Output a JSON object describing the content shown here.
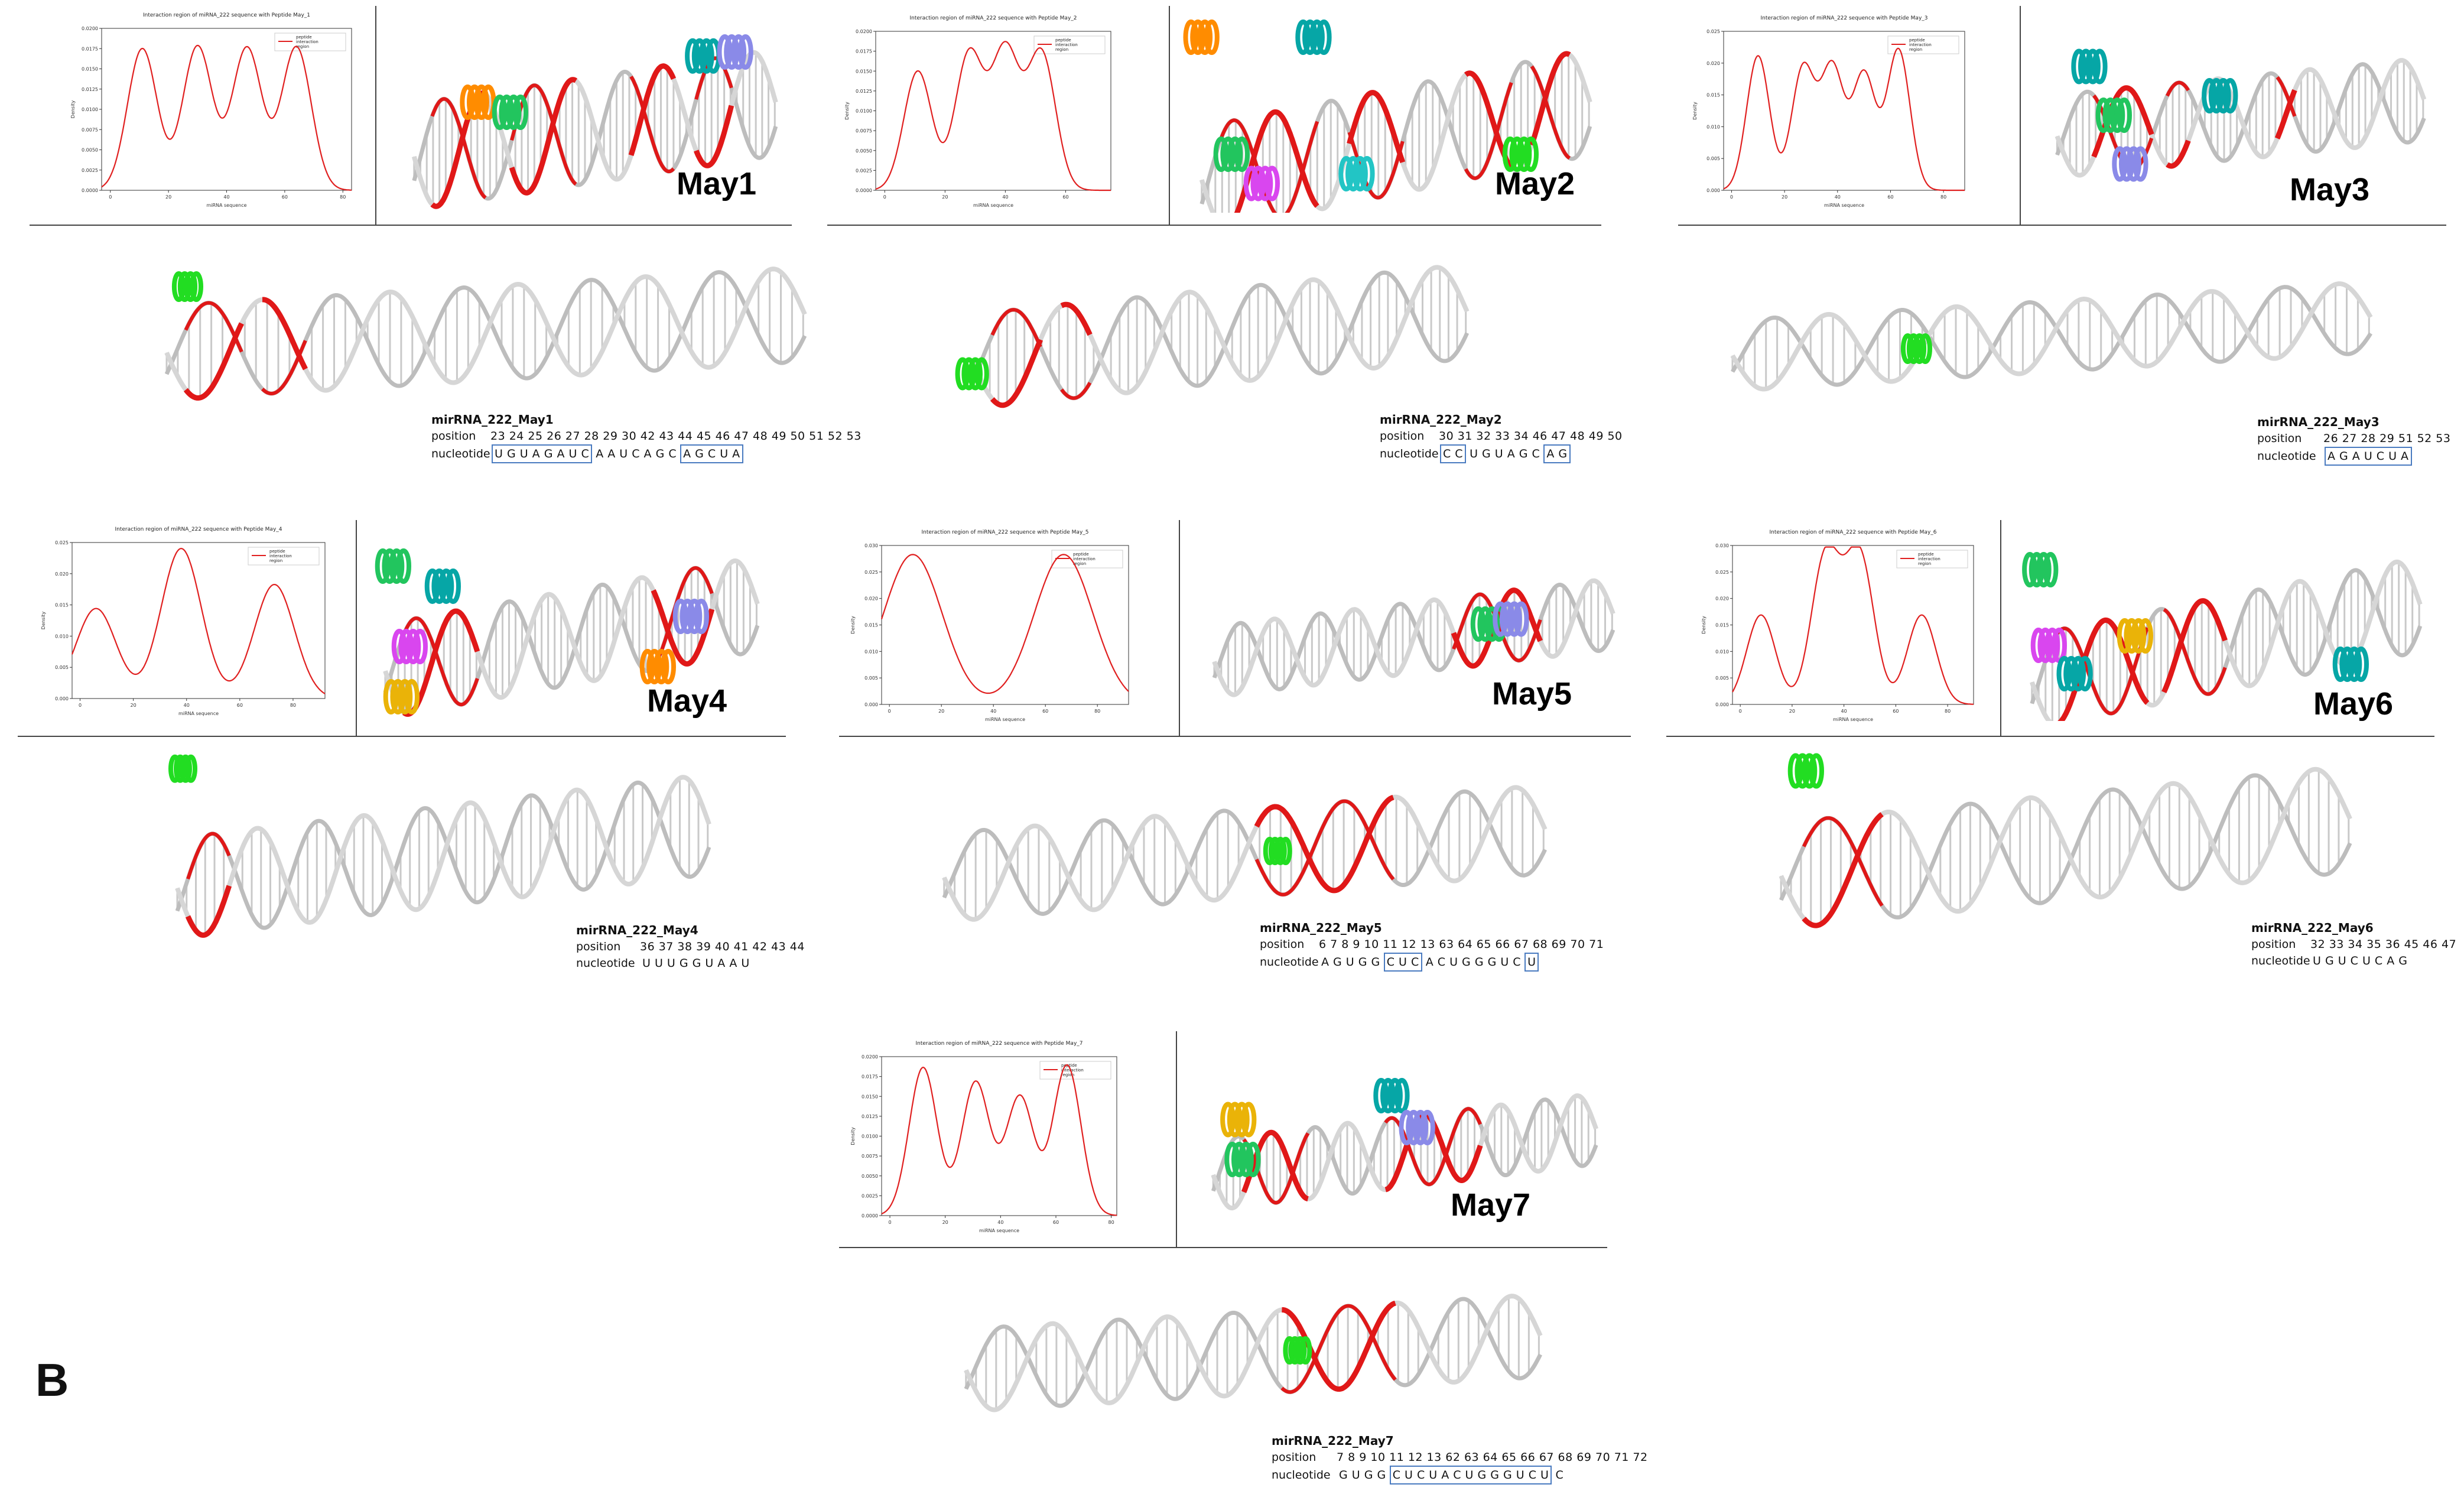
{
  "figure_letter": "B",
  "panels": [
    {
      "id": "may1",
      "label": "May1",
      "plot_title": "Interaction region of miRNA_222 sequence with Peptide May_1",
      "xlabel": "miRNA sequence",
      "ylabel": "Density",
      "legend": [
        "peptide",
        "interaction",
        "region"
      ],
      "yticks": [
        "0.0000",
        "0.0025",
        "0.0050",
        "0.0075",
        "0.0100",
        "0.0125",
        "0.0150",
        "0.0175",
        "0.0200"
      ],
      "xticks": [
        "0",
        "20",
        "40",
        "60",
        "80"
      ],
      "seq_title": "mirRNA_222_May1",
      "position_label": "position",
      "nucleotide_label": "nucleotide",
      "positions": "23 24 25 26 27 28 29 30 42 43 44 45 46 47 48 49 50 51 52 53",
      "nucleotides": [
        {
          "text": "U G U  A G A U C",
          "boxed": true
        },
        {
          "text": "A A U C A G C",
          "boxed": false
        },
        {
          "text": "A G C U A",
          "boxed": true
        }
      ]
    },
    {
      "id": "may2",
      "label": "May2",
      "plot_title": "Interaction region of miRNA_222 sequence with Peptide May_2",
      "xlabel": "miRNA sequence",
      "ylabel": "Density",
      "legend": [
        "peptide",
        "interaction",
        "region"
      ],
      "yticks": [
        "0.0000",
        "0.0025",
        "0.0050",
        "0.0075",
        "0.0100",
        "0.0125",
        "0.0150",
        "0.0175",
        "0.0200"
      ],
      "xticks": [
        "0",
        "20",
        "40",
        "60"
      ],
      "seq_title": "mirRNA_222_May2",
      "position_label": "position",
      "nucleotide_label": "nucleotide",
      "positions": "30 31 32 33 34 46 47 48 49 50",
      "nucleotides": [
        {
          "text": "C C",
          "boxed": true
        },
        {
          "text": "U G U A G C",
          "boxed": false
        },
        {
          "text": "A G",
          "boxed": true
        }
      ]
    },
    {
      "id": "may3",
      "label": "May3",
      "plot_title": "Interaction region of miRNA_222 sequence with Peptide May_3",
      "xlabel": "miRNA sequence",
      "ylabel": "Density",
      "legend": [
        "peptide",
        "interaction",
        "region"
      ],
      "yticks": [
        "0.000",
        "0.005",
        "0.010",
        "0.015",
        "0.020",
        "0.025"
      ],
      "xticks": [
        "0",
        "20",
        "40",
        "60",
        "80"
      ],
      "seq_title": "mirRNA_222_May3",
      "position_label": "position",
      "nucleotide_label": "nucleotide",
      "positions": "26 27 28 29 51 52 53",
      "nucleotides": [
        {
          "text": "A G A U C U A",
          "boxed": true
        }
      ]
    },
    {
      "id": "may4",
      "label": "May4",
      "plot_title": "Interaction region of miRNA_222 sequence with Peptide May_4",
      "xlabel": "miRNA sequence",
      "ylabel": "Density",
      "legend": [
        "peptide",
        "interaction",
        "region"
      ],
      "yticks": [
        "0.000",
        "0.005",
        "0.010",
        "0.015",
        "0.020",
        "0.025"
      ],
      "xticks": [
        "0",
        "20",
        "40",
        "60",
        "80"
      ],
      "seq_title": "mirRNA_222_May4",
      "position_label": "position",
      "nucleotide_label": "nucleotide",
      "positions": "36 37 38 39 40 41 42 43 44",
      "nucleotides": [
        {
          "text": "U U U G G U A A U",
          "boxed": false
        }
      ]
    },
    {
      "id": "may5",
      "label": "May5",
      "plot_title": "Interaction region of miRNA_222 sequence with Peptide May_5",
      "xlabel": "miRNA sequence",
      "ylabel": "Density",
      "legend": [
        "peptide",
        "interaction",
        "region"
      ],
      "yticks": [
        "0.000",
        "0.005",
        "0.010",
        "0.015",
        "0.020",
        "0.025",
        "0.030"
      ],
      "xticks": [
        "0",
        "20",
        "40",
        "60",
        "80"
      ],
      "seq_title": "mirRNA_222_May5",
      "position_label": "position",
      "nucleotide_label": "nucleotide",
      "positions": "6 7 8 9 10 11 12 13 63 64 65 66 67 68 69 70 71",
      "nucleotides": [
        {
          "text": "A G U G G",
          "boxed": false
        },
        {
          "text": "C U C",
          "boxed": true
        },
        {
          "text": "A C U G G G U C",
          "boxed": false
        },
        {
          "text": "U",
          "boxed": true
        }
      ]
    },
    {
      "id": "may6",
      "label": "May6",
      "plot_title": "Interaction region of miRNA_222 sequence with Peptide May_6",
      "xlabel": "miRNA sequence",
      "ylabel": "Density",
      "legend": [
        "peptide",
        "interaction",
        "region"
      ],
      "yticks": [
        "0.000",
        "0.005",
        "0.010",
        "0.015",
        "0.020",
        "0.025",
        "0.030"
      ],
      "xticks": [
        "0",
        "20",
        "40",
        "60",
        "80"
      ],
      "seq_title": "mirRNA_222_May6",
      "position_label": "position",
      "nucleotide_label": "nucleotide",
      "positions": "32 33 34 35 36 45 46 47",
      "nucleotides": [
        {
          "text": "U G U C U C A G",
          "boxed": false
        }
      ]
    },
    {
      "id": "may7",
      "label": "May7",
      "plot_title": "Interaction region of miRNA_222 sequence with Peptide May_7",
      "xlabel": "miRNA sequence",
      "ylabel": "Density",
      "legend": [
        "peptide",
        "interaction",
        "region"
      ],
      "yticks": [
        "0.0000",
        "0.0025",
        "0.0050",
        "0.0075",
        "0.0100",
        "0.0125",
        "0.0150",
        "0.0175",
        "0.0200"
      ],
      "xticks": [
        "0",
        "20",
        "40",
        "60",
        "80"
      ],
      "seq_title": "mirRNA_222_May7",
      "position_label": "position",
      "nucleotide_label": "nucleotide",
      "positions": "7 8 9 10 11 12 13 62 63 64 65 66 67 68 69 70 71 72",
      "nucleotides": [
        {
          "text": "G U G G",
          "boxed": false
        },
        {
          "text": "C U C U A C U G G G U C U",
          "boxed": true
        },
        {
          "text": "C",
          "boxed": false
        }
      ]
    }
  ],
  "chart_data": [
    {
      "type": "line",
      "panel": "May1",
      "x": [
        2,
        13,
        22,
        30,
        39,
        47,
        55,
        64,
        72,
        80
      ],
      "peaks_x": [
        11,
        30,
        47,
        64
      ],
      "peaks_y": [
        0.0175,
        0.0178,
        0.0176,
        0.0177
      ],
      "troughs_y": [
        0.0067,
        0.0064,
        0.0066
      ],
      "ylim": [
        0,
        0.02
      ],
      "xlim": [
        -3,
        83
      ]
    },
    {
      "type": "line",
      "panel": "May2",
      "peaks_x": [
        11,
        28,
        40,
        52
      ],
      "peaks_y": [
        0.015,
        0.0172,
        0.0175,
        0.0172
      ],
      "troughs_y": [
        0.0148,
        0.0125,
        0.013
      ],
      "ylim": [
        0,
        0.02
      ],
      "xlim": [
        -3,
        75
      ]
    },
    {
      "type": "line",
      "panel": "May3",
      "peaks_x": [
        10,
        27,
        38,
        50,
        63
      ],
      "peaks_y": [
        0.022,
        0.02,
        0.02,
        0.019,
        0.023
      ],
      "troughs_y": [
        0.005,
        0.015,
        0.016,
        0.014
      ],
      "ylim": [
        0,
        0.026
      ],
      "xlim": [
        -3,
        88
      ]
    },
    {
      "type": "line",
      "panel": "May4",
      "peaks_x": [
        6,
        38,
        73
      ],
      "peaks_y": [
        0.015,
        0.025,
        0.019
      ],
      "troughs_y": [
        0.002,
        0.001
      ],
      "ylim": [
        0,
        0.026
      ],
      "xlim": [
        -3,
        92
      ]
    },
    {
      "type": "line",
      "panel": "May5",
      "peaks_x": [
        9,
        67
      ],
      "peaks_y": [
        0.033,
        0.033
      ],
      "troughs_y": [
        0.0005
      ],
      "ylim": [
        0,
        0.035
      ],
      "xlim": [
        -3,
        92
      ]
    },
    {
      "type": "line",
      "panel": "May6",
      "peaks_x": [
        8,
        33,
        46,
        70
      ],
      "peaks_y": [
        0.018,
        0.03,
        0.03,
        0.018
      ],
      "troughs_y": [
        0.001,
        0.011,
        0.001
      ],
      "ylim": [
        0,
        0.032
      ],
      "xlim": [
        -3,
        90
      ]
    },
    {
      "type": "line",
      "panel": "May7",
      "peaks_x": [
        12,
        31,
        47,
        64
      ],
      "peaks_y": [
        0.0205,
        0.0185,
        0.0165,
        0.0208
      ],
      "troughs_y": [
        0.0045,
        0.008,
        0.006
      ],
      "ylim": [
        0,
        0.022
      ],
      "xlim": [
        -3,
        82
      ]
    }
  ]
}
